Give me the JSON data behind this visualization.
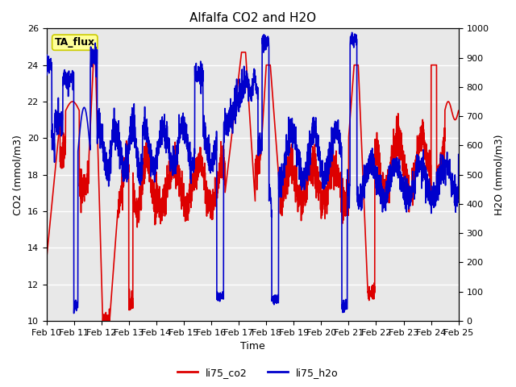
{
  "title": "Alfalfa CO2 and H2O",
  "xlabel": "Time",
  "ylabel_left": "CO2 (mmol/m3)",
  "ylabel_right": "H2O (mmol/m3)",
  "ylim_left": [
    10,
    26
  ],
  "ylim_right": [
    0,
    1000
  ],
  "yticks_left": [
    10,
    12,
    14,
    16,
    18,
    20,
    22,
    24,
    26
  ],
  "yticks_right": [
    0,
    100,
    200,
    300,
    400,
    500,
    600,
    700,
    800,
    900,
    1000
  ],
  "xtick_labels": [
    "Feb 10",
    "Feb 11",
    "Feb 12",
    "Feb 13",
    "Feb 14",
    "Feb 15",
    "Feb 16",
    "Feb 17",
    "Feb 18",
    "Feb 19",
    "Feb 20",
    "Feb 21",
    "Feb 22",
    "Feb 23",
    "Feb 24",
    "Feb 25"
  ],
  "color_co2": "#dd0000",
  "color_h2o": "#0000cc",
  "background_color": "#e8e8e8",
  "tag_label": "TA_flux",
  "tag_facecolor": "#ffff99",
  "tag_edgecolor": "#cccc00",
  "legend_labels": [
    "li75_co2",
    "li75_h2o"
  ],
  "title_fontsize": 11,
  "axis_label_fontsize": 9,
  "tick_fontsize": 8,
  "legend_fontsize": 9,
  "line_width": 1.2,
  "h2o_scale": 38.46
}
